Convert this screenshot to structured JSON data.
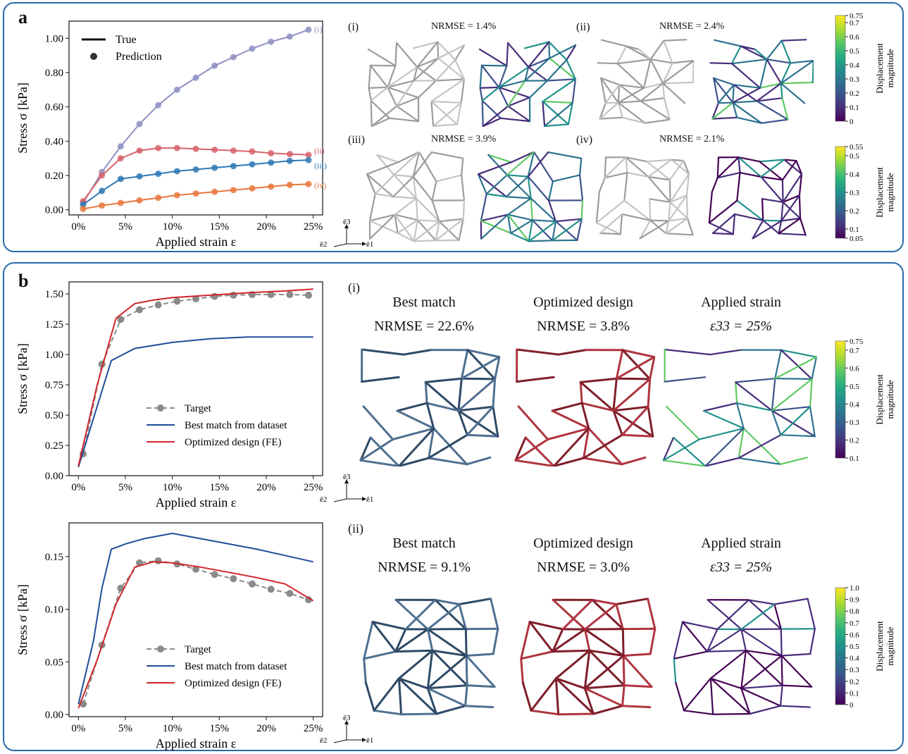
{
  "panel_a": {
    "label": "a",
    "sublabels": [
      "(i)",
      "(ii)",
      "(iii)",
      "(iv)"
    ],
    "nrmse": [
      "NRMSE = 1.4%",
      "NRMSE = 2.4%",
      "NRMSE = 3.9%",
      "NRMSE = 2.1%"
    ],
    "colorbar_top": {
      "ticks": [
        "0.75",
        "0.7",
        "0.6",
        "0.5",
        "0.4",
        "0.3",
        "0.2",
        "0.1",
        "0"
      ],
      "label_line1": "Displacement",
      "label_line2": "magnitude"
    },
    "colorbar_bottom": {
      "ticks": [
        "0.55",
        "0.5",
        "0.4",
        "0.3",
        "0.2",
        "0.1",
        "0.05"
      ],
      "label_line1": "Displacement",
      "label_line2": "magnitude"
    },
    "axes_glyph": {
      "up": "ê3",
      "left": "ê2",
      "right": "ê1"
    }
  },
  "panel_b": {
    "label": "b",
    "rows": [
      {
        "tag": "(i)",
        "best_title": "Best match",
        "best_nrmse": "NRMSE = 22.6%",
        "opt_title": "Optimized design",
        "opt_nrmse": "NRMSE = 3.8%",
        "strain_title": "Applied strain",
        "strain_value": "ε33 = 25%"
      },
      {
        "tag": "(ii)",
        "best_title": "Best match",
        "best_nrmse": "NRMSE = 9.1%",
        "opt_title": "Optimized design",
        "opt_nrmse": "NRMSE = 3.0%",
        "strain_title": "Applied strain",
        "strain_value": "ε33 = 25%"
      }
    ],
    "colorbar_1": {
      "ticks": [
        "0.75",
        "0.7",
        "0.6",
        "0.5",
        "0.4",
        "0.3",
        "0.2",
        "0.1"
      ],
      "label_line1": "Displacement",
      "label_line2": "magnitude"
    },
    "colorbar_2": {
      "ticks": [
        "1.0",
        "0.9",
        "0.8",
        "0.7",
        "0.6",
        "0.5",
        "0.4",
        "0.3",
        "0.2",
        "0.1",
        "0"
      ],
      "label_line1": "Displacement",
      "label_line2": "magnitude"
    },
    "axes_glyph": {
      "up": "ê3",
      "left": "ê2",
      "right": "ê1"
    }
  },
  "colors": {
    "border": "#2a6aa8",
    "curve_i": "#8e90c4",
    "curve_ii": "#d8636b",
    "curve_iii": "#2e79b5",
    "curve_iv": "#e8773c",
    "target": "#8a8a8a",
    "best": "#1f4e9a",
    "optimized": "#d0252c",
    "lattice_gray": "#bdbdbd",
    "lattice_blue": "#4c6d8e",
    "lattice_red": "#a8303a"
  },
  "chart_data": [
    {
      "type": "line",
      "xlabel": "Applied strain ε",
      "ylabel": "Stress σ [kPa]",
      "xlim": [
        -0.01,
        0.26
      ],
      "ylim": [
        -0.03,
        1.1
      ],
      "xticks": [
        0,
        0.05,
        0.1,
        0.15,
        0.2,
        0.25
      ],
      "xtick_labels": [
        "0%",
        "5%",
        "10%",
        "15%",
        "20%",
        "25%"
      ],
      "yticks": [
        0,
        0.2,
        0.4,
        0.6,
        0.8,
        1.0
      ],
      "ytick_labels": [
        "0.00",
        "0.20",
        "0.40",
        "0.60",
        "0.80",
        "1.00"
      ],
      "legend": [
        {
          "label": "True",
          "style": "line"
        },
        {
          "label": "Prediction",
          "style": "marker"
        }
      ],
      "legend_position": "top-left",
      "series": [
        {
          "name": "(i)",
          "color": "#8e90c4",
          "x": [
            0.005,
            0.025,
            0.045,
            0.065,
            0.085,
            0.105,
            0.125,
            0.145,
            0.165,
            0.185,
            0.205,
            0.225,
            0.245
          ],
          "y": [
            0.04,
            0.22,
            0.37,
            0.5,
            0.61,
            0.7,
            0.77,
            0.84,
            0.89,
            0.94,
            0.98,
            1.01,
            1.05
          ]
        },
        {
          "name": "(ii)",
          "color": "#d8636b",
          "x": [
            0.005,
            0.025,
            0.045,
            0.065,
            0.085,
            0.105,
            0.125,
            0.145,
            0.165,
            0.185,
            0.205,
            0.225,
            0.245
          ],
          "y": [
            0.05,
            0.2,
            0.3,
            0.345,
            0.36,
            0.36,
            0.355,
            0.35,
            0.345,
            0.34,
            0.33,
            0.325,
            0.32
          ]
        },
        {
          "name": "(iii)",
          "color": "#2e79b5",
          "x": [
            0.005,
            0.025,
            0.045,
            0.065,
            0.085,
            0.105,
            0.125,
            0.145,
            0.165,
            0.185,
            0.205,
            0.225,
            0.245
          ],
          "y": [
            0.03,
            0.11,
            0.18,
            0.195,
            0.21,
            0.225,
            0.235,
            0.245,
            0.255,
            0.265,
            0.275,
            0.285,
            0.29
          ]
        },
        {
          "name": "(iv)",
          "color": "#e8773c",
          "x": [
            0.005,
            0.025,
            0.045,
            0.065,
            0.085,
            0.105,
            0.125,
            0.145,
            0.165,
            0.185,
            0.205,
            0.225,
            0.245
          ],
          "y": [
            0.005,
            0.025,
            0.04,
            0.055,
            0.07,
            0.085,
            0.095,
            0.105,
            0.115,
            0.125,
            0.135,
            0.145,
            0.15
          ]
        }
      ]
    },
    {
      "type": "line",
      "xlabel": "Applied strain ε",
      "ylabel": "Stress σ [kPa]",
      "xlim": [
        -0.01,
        0.26
      ],
      "ylim": [
        0,
        1.6
      ],
      "xticks": [
        0,
        0.05,
        0.1,
        0.15,
        0.2,
        0.25
      ],
      "xtick_labels": [
        "0%",
        "5%",
        "10%",
        "15%",
        "20%",
        "25%"
      ],
      "yticks": [
        0,
        0.25,
        0.5,
        0.75,
        1.0,
        1.25,
        1.5
      ],
      "ytick_labels": [
        "0.00",
        "0.25",
        "0.50",
        "0.75",
        "1.00",
        "1.25",
        "1.50"
      ],
      "legend": [
        {
          "label": "Target",
          "style": "dashed-marker"
        },
        {
          "label": "Best match from dataset",
          "style": "line"
        },
        {
          "label": "Optimized design (FE)",
          "style": "line"
        }
      ],
      "legend_position": "bottom-right",
      "series": [
        {
          "name": "Target",
          "color": "#8a8a8a",
          "dashed": true,
          "markers": true,
          "x": [
            0.005,
            0.025,
            0.045,
            0.065,
            0.085,
            0.105,
            0.125,
            0.145,
            0.165,
            0.185,
            0.205,
            0.225,
            0.245
          ],
          "y": [
            0.18,
            0.92,
            1.29,
            1.37,
            1.41,
            1.44,
            1.46,
            1.48,
            1.49,
            1.495,
            1.495,
            1.495,
            1.49
          ]
        },
        {
          "name": "Best match from dataset",
          "color": "#1f4e9a",
          "x": [
            0,
            0.035,
            0.06,
            0.1,
            0.14,
            0.18,
            0.22,
            0.25
          ],
          "y": [
            0.07,
            0.95,
            1.05,
            1.1,
            1.13,
            1.145,
            1.145,
            1.145
          ]
        },
        {
          "name": "Optimized design (FE)",
          "color": "#d0252c",
          "x": [
            0,
            0.02,
            0.04,
            0.06,
            0.08,
            0.1,
            0.14,
            0.18,
            0.22,
            0.25
          ],
          "y": [
            0.08,
            0.75,
            1.3,
            1.42,
            1.45,
            1.47,
            1.49,
            1.51,
            1.525,
            1.54
          ]
        }
      ]
    },
    {
      "type": "line",
      "xlabel": "Applied strain ε",
      "ylabel": "Stress σ [kPa]",
      "xlim": [
        -0.01,
        0.26
      ],
      "ylim": [
        -0.002,
        0.182
      ],
      "xticks": [
        0,
        0.05,
        0.1,
        0.15,
        0.2,
        0.25
      ],
      "xtick_labels": [
        "0%",
        "5%",
        "10%",
        "15%",
        "20%",
        "25%"
      ],
      "yticks": [
        0,
        0.05,
        0.1,
        0.15
      ],
      "ytick_labels": [
        "0.00",
        "0.05",
        "0.10",
        "0.15"
      ],
      "legend": [
        {
          "label": "Target",
          "style": "dashed-marker"
        },
        {
          "label": "Best match from dataset",
          "style": "line"
        },
        {
          "label": "Optimized design (FE)",
          "style": "line"
        }
      ],
      "legend_position": "bottom-right",
      "series": [
        {
          "name": "Target",
          "color": "#8a8a8a",
          "dashed": true,
          "markers": true,
          "x": [
            0.005,
            0.025,
            0.045,
            0.065,
            0.085,
            0.105,
            0.125,
            0.145,
            0.165,
            0.185,
            0.205,
            0.225,
            0.245
          ],
          "y": [
            0.01,
            0.066,
            0.12,
            0.144,
            0.146,
            0.143,
            0.138,
            0.133,
            0.129,
            0.124,
            0.119,
            0.115,
            0.109
          ]
        },
        {
          "name": "Best match from dataset",
          "color": "#1f4e9a",
          "x": [
            0,
            0.016,
            0.025,
            0.035,
            0.05,
            0.07,
            0.1,
            0.13,
            0.16,
            0.19,
            0.22,
            0.25
          ],
          "y": [
            0.01,
            0.07,
            0.12,
            0.157,
            0.162,
            0.167,
            0.172,
            0.167,
            0.162,
            0.157,
            0.151,
            0.145
          ]
        },
        {
          "name": "Optimized design (FE)",
          "color": "#d0252c",
          "x": [
            0,
            0.02,
            0.04,
            0.06,
            0.08,
            0.1,
            0.13,
            0.16,
            0.19,
            0.22,
            0.25
          ],
          "y": [
            0.006,
            0.052,
            0.105,
            0.14,
            0.145,
            0.144,
            0.14,
            0.135,
            0.13,
            0.124,
            0.108
          ]
        }
      ]
    }
  ]
}
